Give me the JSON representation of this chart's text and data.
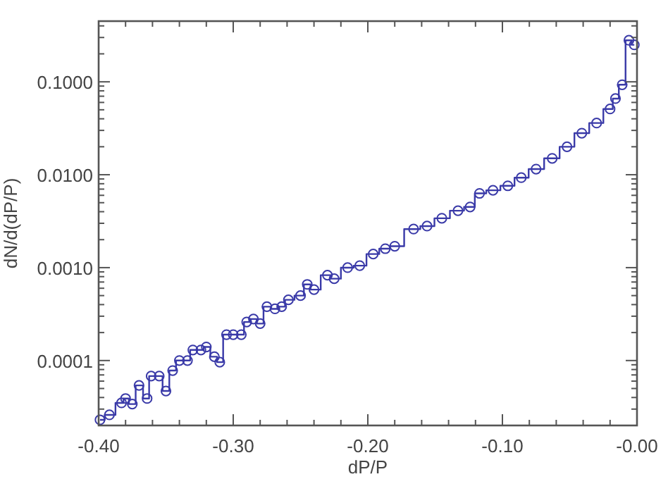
{
  "chart_data": {
    "type": "step",
    "xlabel": "dP/P",
    "ylabel": "dN/d(dP/P)",
    "log": "y",
    "marker": "circle",
    "grid": false,
    "xlim": [
      -0.4,
      0
    ],
    "xticks": [
      {
        "value": -0.4,
        "label": "-0.40"
      },
      {
        "value": -0.38,
        "label": null
      },
      {
        "value": -0.36,
        "label": null
      },
      {
        "value": -0.34,
        "label": null
      },
      {
        "value": -0.32,
        "label": null
      },
      {
        "value": -0.3,
        "label": "-0.30"
      },
      {
        "value": -0.28,
        "label": null
      },
      {
        "value": -0.26,
        "label": null
      },
      {
        "value": -0.24,
        "label": null
      },
      {
        "value": -0.22,
        "label": null
      },
      {
        "value": -0.2,
        "label": "-0.20"
      },
      {
        "value": -0.18,
        "label": null
      },
      {
        "value": -0.16,
        "label": null
      },
      {
        "value": -0.14,
        "label": null
      },
      {
        "value": -0.12,
        "label": null
      },
      {
        "value": -0.1,
        "label": "-0.10"
      },
      {
        "value": -0.08,
        "label": null
      },
      {
        "value": -0.06,
        "label": null
      },
      {
        "value": -0.04,
        "label": null
      },
      {
        "value": -0.02,
        "label": null
      },
      {
        "value": 0,
        "label": "-0.00"
      }
    ],
    "ylim": [
      2e-05,
      0.45
    ],
    "yticks": [
      {
        "value": 3e-05,
        "label": null
      },
      {
        "value": 4e-05,
        "label": null
      },
      {
        "value": 5e-05,
        "label": null
      },
      {
        "value": 6e-05,
        "label": null
      },
      {
        "value": 7e-05,
        "label": null
      },
      {
        "value": 8e-05,
        "label": null
      },
      {
        "value": 9e-05,
        "label": null
      },
      {
        "value": 0.0001,
        "label": "0.0001"
      },
      {
        "value": 0.0002,
        "label": null
      },
      {
        "value": 0.0003,
        "label": null
      },
      {
        "value": 0.0004,
        "label": null
      },
      {
        "value": 0.0005,
        "label": null
      },
      {
        "value": 0.0006,
        "label": null
      },
      {
        "value": 0.0007,
        "label": null
      },
      {
        "value": 0.0008,
        "label": null
      },
      {
        "value": 0.0009,
        "label": null
      },
      {
        "value": 0.001,
        "label": "0.0010"
      },
      {
        "value": 0.002,
        "label": null
      },
      {
        "value": 0.003,
        "label": null
      },
      {
        "value": 0.004,
        "label": null
      },
      {
        "value": 0.005,
        "label": null
      },
      {
        "value": 0.006,
        "label": null
      },
      {
        "value": 0.007,
        "label": null
      },
      {
        "value": 0.008,
        "label": null
      },
      {
        "value": 0.009,
        "label": null
      },
      {
        "value": 0.01,
        "label": "0.0100"
      },
      {
        "value": 0.02,
        "label": null
      },
      {
        "value": 0.03,
        "label": null
      },
      {
        "value": 0.04,
        "label": null
      },
      {
        "value": 0.05,
        "label": null
      },
      {
        "value": 0.06,
        "label": null
      },
      {
        "value": 0.07,
        "label": null
      },
      {
        "value": 0.08,
        "label": null
      },
      {
        "value": 0.09,
        "label": null
      },
      {
        "value": 0.1,
        "label": "0.1000"
      },
      {
        "value": 0.2,
        "label": null
      },
      {
        "value": 0.3,
        "label": null
      },
      {
        "value": 0.4,
        "label": null
      }
    ],
    "series": [
      {
        "color": "#3a3aa8",
        "x": [
          -0.399,
          -0.392,
          -0.383,
          -0.38,
          -0.375,
          -0.37,
          -0.364,
          -0.361,
          -0.355,
          -0.35,
          -0.345,
          -0.34,
          -0.334,
          -0.33,
          -0.324,
          -0.32,
          -0.314,
          -0.31,
          -0.305,
          -0.3,
          -0.294,
          -0.29,
          -0.285,
          -0.28,
          -0.275,
          -0.269,
          -0.264,
          -0.259,
          -0.25,
          -0.245,
          -0.24,
          -0.23,
          -0.225,
          -0.215,
          -0.206,
          -0.196,
          -0.187,
          -0.18,
          -0.166,
          -0.156,
          -0.145,
          -0.133,
          -0.124,
          -0.117,
          -0.107,
          -0.096,
          -0.086,
          -0.075,
          -0.063,
          -0.052,
          -0.041,
          -0.03,
          -0.02,
          -0.016,
          -0.011,
          -0.006,
          -0.002
        ],
        "values": [
          2.3e-05,
          2.6e-05,
          3.5e-05,
          3.9e-05,
          3.4e-05,
          5.4e-05,
          3.9e-05,
          6.8e-05,
          6.8e-05,
          4.7e-05,
          7.8e-05,
          0.0001,
          0.0001,
          0.00013,
          0.00013,
          0.00014,
          0.00011,
          9.6e-05,
          0.00019,
          0.00019,
          0.00019,
          0.00026,
          0.00028,
          0.00025,
          0.00038,
          0.00036,
          0.00038,
          0.00045,
          0.0005,
          0.00066,
          0.00058,
          0.00083,
          0.00076,
          0.001,
          0.00105,
          0.0014,
          0.0016,
          0.0017,
          0.0026,
          0.0028,
          0.0034,
          0.0041,
          0.0045,
          0.0063,
          0.0068,
          0.0076,
          0.0093,
          0.0115,
          0.015,
          0.02,
          0.028,
          0.036,
          0.051,
          0.066,
          0.093,
          0.28,
          0.25
        ]
      }
    ]
  }
}
